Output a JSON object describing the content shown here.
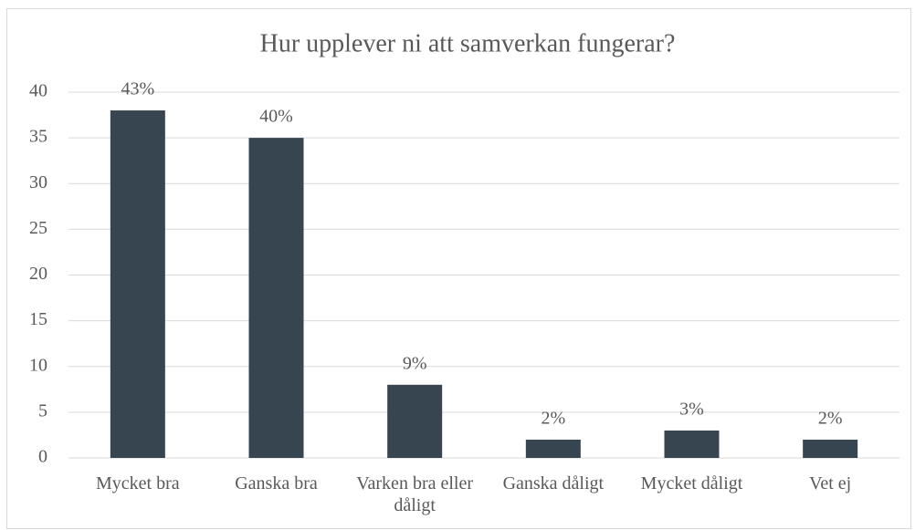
{
  "chart_data": {
    "type": "bar",
    "title": "Hur upplever ni att samverkan fungerar?",
    "categories": [
      "Mycket bra",
      "Ganska bra",
      "Varken bra eller dåligt",
      "Ganska dåligt",
      "Mycket dåligt",
      "Vet ej"
    ],
    "values": [
      38,
      35,
      8,
      2,
      3,
      2
    ],
    "value_labels": [
      "43%",
      "40%",
      "9%",
      "2%",
      "3%",
      "2%"
    ],
    "color": "#36454f",
    "ylim": [
      0,
      40
    ],
    "yticks": [
      0,
      5,
      10,
      15,
      20,
      25,
      30,
      35,
      40
    ],
    "grid": true
  }
}
